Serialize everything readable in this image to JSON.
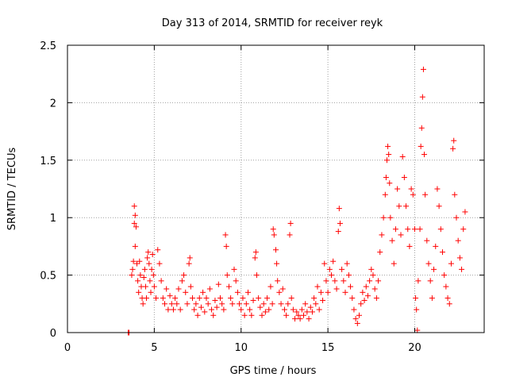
{
  "chart_data": {
    "type": "scatter",
    "title": "Day 313 of 2014, SRMTID for receiver reyk",
    "xlabel": "GPS time / hours",
    "ylabel": "SRMTID / TECUs",
    "xlim": [
      0,
      24
    ],
    "ylim": [
      0,
      2.5
    ],
    "xticks": [
      0,
      5,
      10,
      15,
      20
    ],
    "yticks": [
      0,
      0.5,
      1,
      1.5,
      2,
      2.5
    ],
    "xtick_labels": [
      "0",
      "5",
      "10",
      "15",
      "20"
    ],
    "ytick_labels": [
      "0",
      "0.5",
      "1",
      "1.5",
      "2",
      "2.5"
    ],
    "grid": true,
    "marker": "+",
    "color": "#ff0000",
    "series": [
      {
        "name": "SRMTID",
        "points": [
          [
            3.5,
            0.0
          ],
          [
            3.5,
            0.0
          ],
          [
            3.55,
            0.0
          ],
          [
            3.7,
            0.5
          ],
          [
            3.75,
            0.55
          ],
          [
            3.8,
            0.62
          ],
          [
            3.85,
            0.95
          ],
          [
            3.85,
            1.1
          ],
          [
            3.9,
            1.02
          ],
          [
            3.95,
            0.92
          ],
          [
            3.9,
            0.75
          ],
          [
            4.0,
            0.6
          ],
          [
            4.05,
            0.45
          ],
          [
            4.1,
            0.35
          ],
          [
            4.15,
            0.62
          ],
          [
            4.2,
            0.5
          ],
          [
            4.25,
            0.4
          ],
          [
            4.3,
            0.3
          ],
          [
            4.35,
            0.25
          ],
          [
            4.4,
            0.48
          ],
          [
            4.45,
            0.55
          ],
          [
            4.5,
            0.4
          ],
          [
            4.55,
            0.3
          ],
          [
            4.6,
            0.65
          ],
          [
            4.65,
            0.7
          ],
          [
            4.7,
            0.6
          ],
          [
            4.75,
            0.45
          ],
          [
            4.8,
            0.35
          ],
          [
            4.85,
            0.55
          ],
          [
            4.9,
            0.68
          ],
          [
            4.95,
            0.5
          ],
          [
            5.0,
            0.4
          ],
          [
            5.1,
            0.3
          ],
          [
            5.2,
            0.72
          ],
          [
            5.3,
            0.6
          ],
          [
            5.4,
            0.45
          ],
          [
            5.5,
            0.3
          ],
          [
            5.6,
            0.25
          ],
          [
            5.7,
            0.38
          ],
          [
            5.8,
            0.2
          ],
          [
            5.9,
            0.32
          ],
          [
            6.0,
            0.25
          ],
          [
            6.1,
            0.2
          ],
          [
            6.2,
            0.3
          ],
          [
            6.3,
            0.25
          ],
          [
            6.4,
            0.38
          ],
          [
            6.5,
            0.2
          ],
          [
            6.6,
            0.45
          ],
          [
            6.7,
            0.5
          ],
          [
            6.8,
            0.35
          ],
          [
            6.9,
            0.25
          ],
          [
            7.0,
            0.6
          ],
          [
            7.05,
            0.65
          ],
          [
            7.1,
            0.4
          ],
          [
            7.2,
            0.3
          ],
          [
            7.3,
            0.2
          ],
          [
            7.4,
            0.25
          ],
          [
            7.5,
            0.15
          ],
          [
            7.6,
            0.3
          ],
          [
            7.7,
            0.22
          ],
          [
            7.8,
            0.35
          ],
          [
            7.9,
            0.18
          ],
          [
            8.0,
            0.3
          ],
          [
            8.1,
            0.25
          ],
          [
            8.2,
            0.38
          ],
          [
            8.3,
            0.2
          ],
          [
            8.4,
            0.15
          ],
          [
            8.5,
            0.28
          ],
          [
            8.6,
            0.22
          ],
          [
            8.7,
            0.42
          ],
          [
            8.8,
            0.3
          ],
          [
            8.9,
            0.25
          ],
          [
            9.0,
            0.2
          ],
          [
            9.1,
            0.85
          ],
          [
            9.15,
            0.75
          ],
          [
            9.2,
            0.5
          ],
          [
            9.3,
            0.4
          ],
          [
            9.4,
            0.3
          ],
          [
            9.5,
            0.25
          ],
          [
            9.6,
            0.55
          ],
          [
            9.7,
            0.45
          ],
          [
            9.8,
            0.35
          ],
          [
            9.9,
            0.25
          ],
          [
            10.0,
            0.2
          ],
          [
            10.1,
            0.3
          ],
          [
            10.2,
            0.15
          ],
          [
            10.3,
            0.25
          ],
          [
            10.4,
            0.35
          ],
          [
            10.5,
            0.2
          ],
          [
            10.6,
            0.15
          ],
          [
            10.7,
            0.28
          ],
          [
            10.8,
            0.65
          ],
          [
            10.85,
            0.7
          ],
          [
            10.9,
            0.5
          ],
          [
            11.0,
            0.3
          ],
          [
            11.1,
            0.22
          ],
          [
            11.2,
            0.15
          ],
          [
            11.3,
            0.25
          ],
          [
            11.4,
            0.18
          ],
          [
            11.5,
            0.3
          ],
          [
            11.6,
            0.2
          ],
          [
            11.7,
            0.4
          ],
          [
            11.8,
            0.25
          ],
          [
            11.85,
            0.9
          ],
          [
            11.9,
            0.85
          ],
          [
            12.0,
            0.72
          ],
          [
            12.05,
            0.6
          ],
          [
            12.1,
            0.45
          ],
          [
            12.2,
            0.35
          ],
          [
            12.3,
            0.25
          ],
          [
            12.4,
            0.38
          ],
          [
            12.5,
            0.2
          ],
          [
            12.6,
            0.15
          ],
          [
            12.7,
            0.25
          ],
          [
            12.8,
            0.85
          ],
          [
            12.85,
            0.95
          ],
          [
            12.9,
            0.3
          ],
          [
            13.0,
            0.2
          ],
          [
            13.1,
            0.12
          ],
          [
            13.2,
            0.18
          ],
          [
            13.3,
            0.15
          ],
          [
            13.4,
            0.12
          ],
          [
            13.5,
            0.2
          ],
          [
            13.6,
            0.15
          ],
          [
            13.7,
            0.25
          ],
          [
            13.8,
            0.18
          ],
          [
            13.9,
            0.12
          ],
          [
            14.0,
            0.22
          ],
          [
            14.1,
            0.18
          ],
          [
            14.2,
            0.3
          ],
          [
            14.3,
            0.25
          ],
          [
            14.4,
            0.4
          ],
          [
            14.5,
            0.2
          ],
          [
            14.6,
            0.35
          ],
          [
            14.7,
            0.28
          ],
          [
            14.8,
            0.6
          ],
          [
            14.9,
            0.45
          ],
          [
            15.0,
            0.35
          ],
          [
            15.1,
            0.55
          ],
          [
            15.2,
            0.5
          ],
          [
            15.3,
            0.62
          ],
          [
            15.4,
            0.45
          ],
          [
            15.5,
            0.38
          ],
          [
            15.6,
            0.88
          ],
          [
            15.65,
            1.08
          ],
          [
            15.7,
            0.95
          ],
          [
            15.8,
            0.55
          ],
          [
            15.9,
            0.45
          ],
          [
            16.0,
            0.35
          ],
          [
            16.1,
            0.6
          ],
          [
            16.2,
            0.5
          ],
          [
            16.3,
            0.4
          ],
          [
            16.4,
            0.3
          ],
          [
            16.5,
            0.2
          ],
          [
            16.6,
            0.12
          ],
          [
            16.7,
            0.08
          ],
          [
            16.8,
            0.15
          ],
          [
            16.9,
            0.25
          ],
          [
            17.0,
            0.35
          ],
          [
            17.1,
            0.28
          ],
          [
            17.2,
            0.4
          ],
          [
            17.3,
            0.32
          ],
          [
            17.4,
            0.45
          ],
          [
            17.5,
            0.55
          ],
          [
            17.6,
            0.5
          ],
          [
            17.7,
            0.38
          ],
          [
            17.8,
            0.3
          ],
          [
            17.9,
            0.45
          ],
          [
            18.0,
            0.7
          ],
          [
            18.1,
            0.85
          ],
          [
            18.2,
            1.0
          ],
          [
            18.3,
            1.2
          ],
          [
            18.35,
            1.35
          ],
          [
            18.4,
            1.5
          ],
          [
            18.45,
            1.62
          ],
          [
            18.5,
            1.55
          ],
          [
            18.55,
            1.3
          ],
          [
            18.6,
            1.0
          ],
          [
            18.7,
            0.8
          ],
          [
            18.8,
            0.6
          ],
          [
            18.9,
            0.9
          ],
          [
            19.0,
            1.25
          ],
          [
            19.1,
            1.1
          ],
          [
            19.2,
            0.85
          ],
          [
            19.3,
            1.53
          ],
          [
            19.4,
            1.35
          ],
          [
            19.5,
            1.1
          ],
          [
            19.6,
            0.9
          ],
          [
            19.7,
            0.75
          ],
          [
            19.8,
            1.25
          ],
          [
            19.9,
            1.2
          ],
          [
            20.0,
            0.9
          ],
          [
            20.05,
            0.3
          ],
          [
            20.1,
            0.2
          ],
          [
            20.15,
            0.02
          ],
          [
            20.2,
            0.45
          ],
          [
            20.3,
            0.9
          ],
          [
            20.35,
            1.62
          ],
          [
            20.4,
            1.78
          ],
          [
            20.45,
            2.05
          ],
          [
            20.5,
            2.29
          ],
          [
            20.55,
            1.55
          ],
          [
            20.6,
            1.2
          ],
          [
            20.7,
            0.8
          ],
          [
            20.8,
            0.6
          ],
          [
            20.9,
            0.45
          ],
          [
            21.0,
            0.3
          ],
          [
            21.1,
            0.55
          ],
          [
            21.2,
            0.75
          ],
          [
            21.3,
            1.25
          ],
          [
            21.4,
            1.1
          ],
          [
            21.5,
            0.9
          ],
          [
            21.6,
            0.7
          ],
          [
            21.7,
            0.5
          ],
          [
            21.8,
            0.4
          ],
          [
            21.9,
            0.3
          ],
          [
            22.0,
            0.25
          ],
          [
            22.1,
            0.6
          ],
          [
            22.2,
            1.6
          ],
          [
            22.25,
            1.67
          ],
          [
            22.3,
            1.2
          ],
          [
            22.4,
            1.0
          ],
          [
            22.5,
            0.8
          ],
          [
            22.6,
            0.65
          ],
          [
            22.7,
            0.55
          ],
          [
            22.8,
            0.9
          ],
          [
            22.9,
            1.05
          ]
        ]
      }
    ]
  }
}
